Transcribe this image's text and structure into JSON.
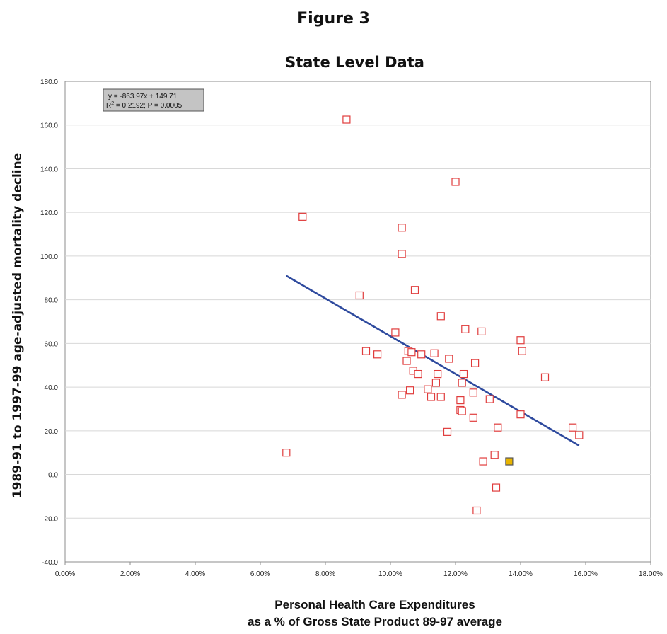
{
  "figure_title": "Figure 3",
  "chart_data": {
    "type": "scatter",
    "title": "State Level Data",
    "xlabel_line1": "Personal Health Care Expenditures",
    "xlabel_line2": "as a % of Gross State Product 89-97 average",
    "ylabel": "1989-91 to 1997-99 age-adjusted mortality decline",
    "xlim": [
      0,
      0.18
    ],
    "ylim": [
      -40,
      180
    ],
    "x_ticks": [
      0,
      0.02,
      0.04,
      0.06,
      0.08,
      0.1,
      0.12,
      0.14,
      0.16,
      0.18
    ],
    "x_tick_labels": [
      "0.00%",
      "2.00%",
      "4.00%",
      "6.00%",
      "8.00%",
      "10.00%",
      "12.00%",
      "14.00%",
      "16.00%",
      "18.00%"
    ],
    "y_ticks": [
      -40,
      -20,
      0,
      20,
      40,
      60,
      80,
      100,
      120,
      140,
      160,
      180
    ],
    "y_tick_labels": [
      "-40.0",
      "-20.0",
      "0.0",
      "20.0",
      "40.0",
      "60.0",
      "80.0",
      "100.0",
      "120.0",
      "140.0",
      "160.0",
      "180.0"
    ],
    "grid": "horizontal",
    "annotation_line1": "y = -863.97x + 149.71",
    "annotation_line2_prefix": "R",
    "annotation_line2_sup": "2",
    "annotation_line2_rest": " = 0.2192; P = 0.0005",
    "annotation_placement": "top-left",
    "trendline": {
      "slope": -863.97,
      "intercept": 149.71,
      "x_range": [
        0.068,
        0.158
      ]
    },
    "colors": {
      "marker": "#e03c3c",
      "highlight_fill": "#e8b400",
      "trendline": "#2e4a9e",
      "grid": "#d8d8d8"
    },
    "points": [
      {
        "x": 0.0865,
        "y": 162.5
      },
      {
        "x": 0.12,
        "y": 134.0
      },
      {
        "x": 0.073,
        "y": 118.0
      },
      {
        "x": 0.1035,
        "y": 113.0
      },
      {
        "x": 0.1035,
        "y": 101.0
      },
      {
        "x": 0.1075,
        "y": 84.5
      },
      {
        "x": 0.0905,
        "y": 82.0
      },
      {
        "x": 0.1155,
        "y": 72.5
      },
      {
        "x": 0.123,
        "y": 66.5
      },
      {
        "x": 0.128,
        "y": 65.5
      },
      {
        "x": 0.1015,
        "y": 65.0
      },
      {
        "x": 0.14,
        "y": 61.5
      },
      {
        "x": 0.1405,
        "y": 56.5
      },
      {
        "x": 0.0925,
        "y": 56.5
      },
      {
        "x": 0.1055,
        "y": 56.5
      },
      {
        "x": 0.1065,
        "y": 56.0
      },
      {
        "x": 0.1135,
        "y": 55.5
      },
      {
        "x": 0.1095,
        "y": 55.0
      },
      {
        "x": 0.096,
        "y": 55.0
      },
      {
        "x": 0.118,
        "y": 53.0
      },
      {
        "x": 0.105,
        "y": 52.0
      },
      {
        "x": 0.126,
        "y": 51.0
      },
      {
        "x": 0.107,
        "y": 47.5
      },
      {
        "x": 0.1085,
        "y": 46.0
      },
      {
        "x": 0.1145,
        "y": 46.0
      },
      {
        "x": 0.1225,
        "y": 46.0
      },
      {
        "x": 0.1475,
        "y": 44.5
      },
      {
        "x": 0.114,
        "y": 42.0
      },
      {
        "x": 0.122,
        "y": 42.0
      },
      {
        "x": 0.1115,
        "y": 39.0
      },
      {
        "x": 0.106,
        "y": 38.5
      },
      {
        "x": 0.1255,
        "y": 37.5
      },
      {
        "x": 0.1035,
        "y": 36.5
      },
      {
        "x": 0.1155,
        "y": 35.5
      },
      {
        "x": 0.1125,
        "y": 35.5
      },
      {
        "x": 0.1305,
        "y": 34.5
      },
      {
        "x": 0.1215,
        "y": 34.0
      },
      {
        "x": 0.1215,
        "y": 29.5
      },
      {
        "x": 0.122,
        "y": 29.0
      },
      {
        "x": 0.14,
        "y": 27.5
      },
      {
        "x": 0.1255,
        "y": 26.0
      },
      {
        "x": 0.156,
        "y": 21.5
      },
      {
        "x": 0.133,
        "y": 21.5
      },
      {
        "x": 0.1175,
        "y": 19.5
      },
      {
        "x": 0.158,
        "y": 18.0
      },
      {
        "x": 0.068,
        "y": 10.0
      },
      {
        "x": 0.132,
        "y": 9.0
      },
      {
        "x": 0.1285,
        "y": 6.0
      },
      {
        "x": 0.1365,
        "y": 6.0,
        "highlight": true
      },
      {
        "x": 0.1325,
        "y": -6.0
      },
      {
        "x": 0.1265,
        "y": -16.5
      }
    ]
  }
}
